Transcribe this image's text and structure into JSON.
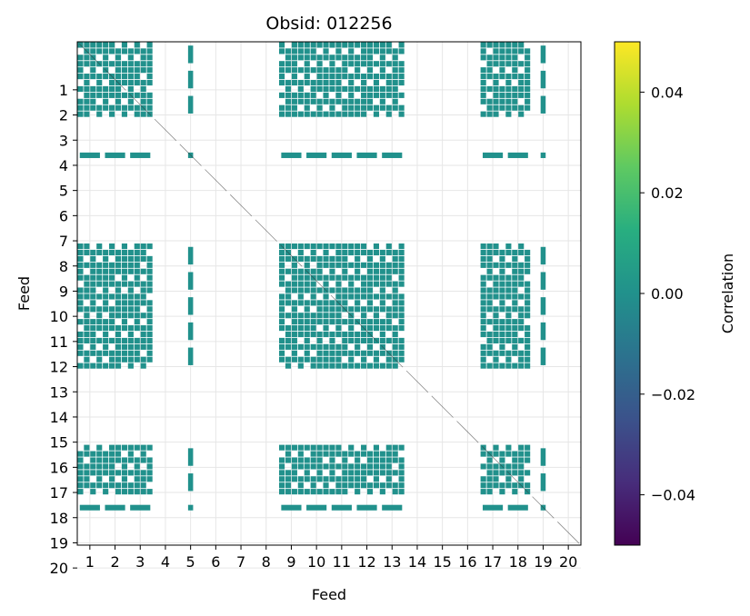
{
  "chart_data": {
    "type": "heatmap",
    "title": "Obsid: 012256",
    "xlabel": "Feed",
    "ylabel": "Feed",
    "x_ticks": [
      "1",
      "2",
      "3",
      "4",
      "5",
      "6",
      "7",
      "8",
      "9",
      "10",
      "11",
      "12",
      "13",
      "14",
      "15",
      "16",
      "17",
      "18",
      "19",
      "20"
    ],
    "y_ticks": [
      "1",
      "2",
      "3",
      "4",
      "5",
      "6",
      "7",
      "8",
      "9",
      "10",
      "11",
      "12",
      "13",
      "14",
      "15",
      "16",
      "17",
      "18",
      "19",
      "20"
    ],
    "n_feeds": 20,
    "feeds_in_correlated_groups": [
      1,
      2,
      3,
      5,
      9,
      10,
      11,
      12,
      13,
      17,
      18,
      19
    ],
    "uncorrelated_feeds": [
      4,
      6,
      7,
      8,
      14,
      15,
      16,
      20
    ],
    "all_visible_values": 0.0,
    "grid": true,
    "colorbar": {
      "label": "Correlation",
      "colormap": "viridis",
      "vmin": -0.05,
      "vmax": 0.05,
      "ticks": [
        -0.04,
        -0.02,
        0.0,
        0.02,
        0.04
      ],
      "tick_labels": [
        "−0.04",
        "−0.02",
        "0.00",
        "0.02",
        "0.04"
      ]
    },
    "cell_color": "#21918c"
  }
}
